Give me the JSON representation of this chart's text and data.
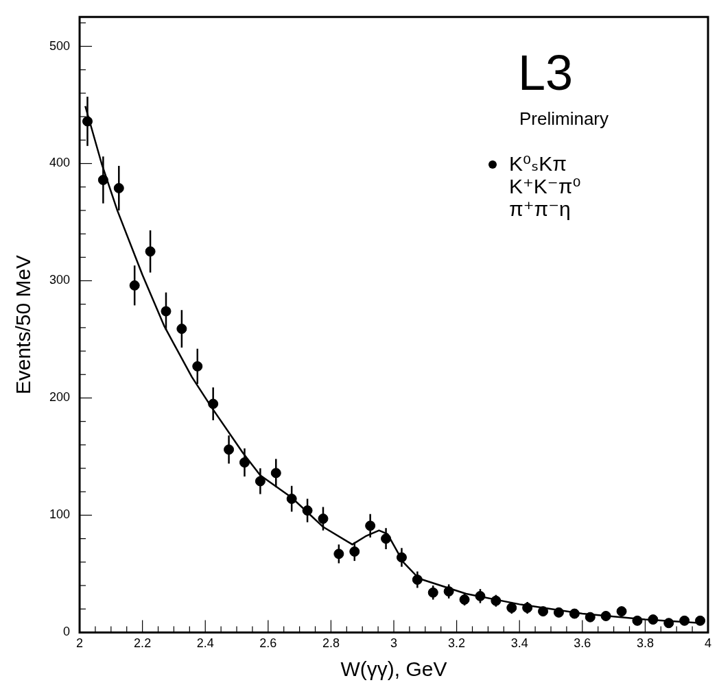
{
  "chart_data": {
    "type": "scatter",
    "xlabel": "W(γγ), GeV",
    "ylabel": "Events/50 MeV",
    "annotations": [
      "L3",
      "Preliminary"
    ],
    "xlim": [
      2,
      4
    ],
    "ylim": [
      0,
      525
    ],
    "xticks": [
      2,
      {
        "value": 2.05,
        "label": null
      },
      {
        "value": 2.1,
        "label": null
      },
      {
        "value": 2.15,
        "label": null
      },
      2.2,
      {
        "value": 2.25,
        "label": null
      },
      {
        "value": 2.3,
        "label": null
      },
      {
        "value": 2.35,
        "label": null
      },
      2.4,
      {
        "value": 2.45,
        "label": null
      },
      {
        "value": 2.5,
        "label": null
      },
      {
        "value": 2.55,
        "label": null
      },
      2.6,
      {
        "value": 2.65,
        "label": null
      },
      {
        "value": 2.7,
        "label": null
      },
      {
        "value": 2.75,
        "label": null
      },
      2.8,
      {
        "value": 2.85,
        "label": null
      },
      {
        "value": 2.9,
        "label": null
      },
      {
        "value": 2.95,
        "label": null
      },
      3,
      {
        "value": 3.05,
        "label": null
      },
      {
        "value": 3.1,
        "label": null
      },
      {
        "value": 3.15,
        "label": null
      },
      3.2,
      {
        "value": 3.25,
        "label": null
      },
      {
        "value": 3.3,
        "label": null
      },
      {
        "value": 3.35,
        "label": null
      },
      3.4,
      {
        "value": 3.45,
        "label": null
      },
      {
        "value": 3.5,
        "label": null
      },
      {
        "value": 3.55,
        "label": null
      },
      3.6,
      {
        "value": 3.65,
        "label": null
      },
      {
        "value": 3.7,
        "label": null
      },
      {
        "value": 3.75,
        "label": null
      },
      3.8,
      {
        "value": 3.85,
        "label": null
      },
      {
        "value": 3.9,
        "label": null
      },
      {
        "value": 3.95,
        "label": null
      },
      4
    ],
    "yticks": [
      0,
      {
        "value": 20,
        "label": null
      },
      {
        "value": 40,
        "label": null
      },
      {
        "value": 60,
        "label": null
      },
      {
        "value": 80,
        "label": null
      },
      100,
      {
        "value": 120,
        "label": null
      },
      {
        "value": 140,
        "label": null
      },
      {
        "value": 160,
        "label": null
      },
      {
        "value": 180,
        "label": null
      },
      200,
      {
        "value": 220,
        "label": null
      },
      {
        "value": 240,
        "label": null
      },
      {
        "value": 260,
        "label": null
      },
      {
        "value": 280,
        "label": null
      },
      300,
      {
        "value": 320,
        "label": null
      },
      {
        "value": 340,
        "label": null
      },
      {
        "value": 360,
        "label": null
      },
      {
        "value": 380,
        "label": null
      },
      400,
      {
        "value": 420,
        "label": null
      },
      {
        "value": 440,
        "label": null
      },
      {
        "value": 460,
        "label": null
      },
      {
        "value": 480,
        "label": null
      },
      500,
      {
        "value": 520,
        "label": null
      }
    ],
    "legend": "top right",
    "marker": "circle",
    "grid": false,
    "series": [
      {
        "name": "K⁰ₛKπ\nK⁺K⁻π⁰\nπ⁺π⁻η",
        "color": "#000000",
        "x": [
          2.025,
          2.075,
          2.125,
          2.175,
          2.225,
          2.275,
          2.325,
          2.375,
          2.425,
          2.475,
          2.525,
          2.575,
          2.625,
          2.675,
          2.725,
          2.775,
          2.825,
          2.875,
          2.925,
          2.975,
          3.025,
          3.075,
          3.125,
          3.175,
          3.225,
          3.275,
          3.325,
          3.375,
          3.425,
          3.475,
          3.525,
          3.575,
          3.625,
          3.675,
          3.725,
          3.775,
          3.825,
          3.875,
          3.925,
          3.975
        ],
        "values": [
          436,
          386,
          379,
          296,
          325,
          274,
          259,
          227,
          195,
          156,
          145,
          129,
          136,
          114,
          104,
          97,
          67,
          69,
          91,
          80,
          64,
          45,
          34,
          35,
          28,
          31,
          27,
          21,
          21,
          18,
          17,
          16,
          13,
          14,
          18,
          10,
          11,
          8,
          10,
          10
        ],
        "errors": [
          21,
          20,
          19,
          17,
          18,
          16,
          16,
          15,
          14,
          12,
          12,
          11,
          12,
          11,
          10,
          10,
          8,
          8,
          10,
          9,
          8,
          7,
          6,
          6,
          5,
          6,
          5,
          5,
          5,
          4,
          4,
          4,
          4,
          4,
          4,
          3,
          3,
          3,
          3,
          3
        ]
      },
      {
        "type": "line",
        "color": "#000000",
        "marker": "none",
        "x": [
          2.018,
          2.07,
          2.12,
          2.2,
          2.27,
          2.357,
          2.42,
          2.52,
          2.575,
          2.675,
          2.775,
          2.868,
          2.91,
          2.953,
          2.98,
          3.03,
          3.08,
          3.23,
          3.4,
          3.6,
          3.8,
          3.975
        ],
        "values": [
          449,
          400,
          360,
          305,
          261,
          218,
          192,
          153,
          134,
          115,
          90,
          75,
          82,
          87,
          84,
          60,
          46,
          33,
          24,
          16,
          11,
          8
        ]
      }
    ]
  }
}
